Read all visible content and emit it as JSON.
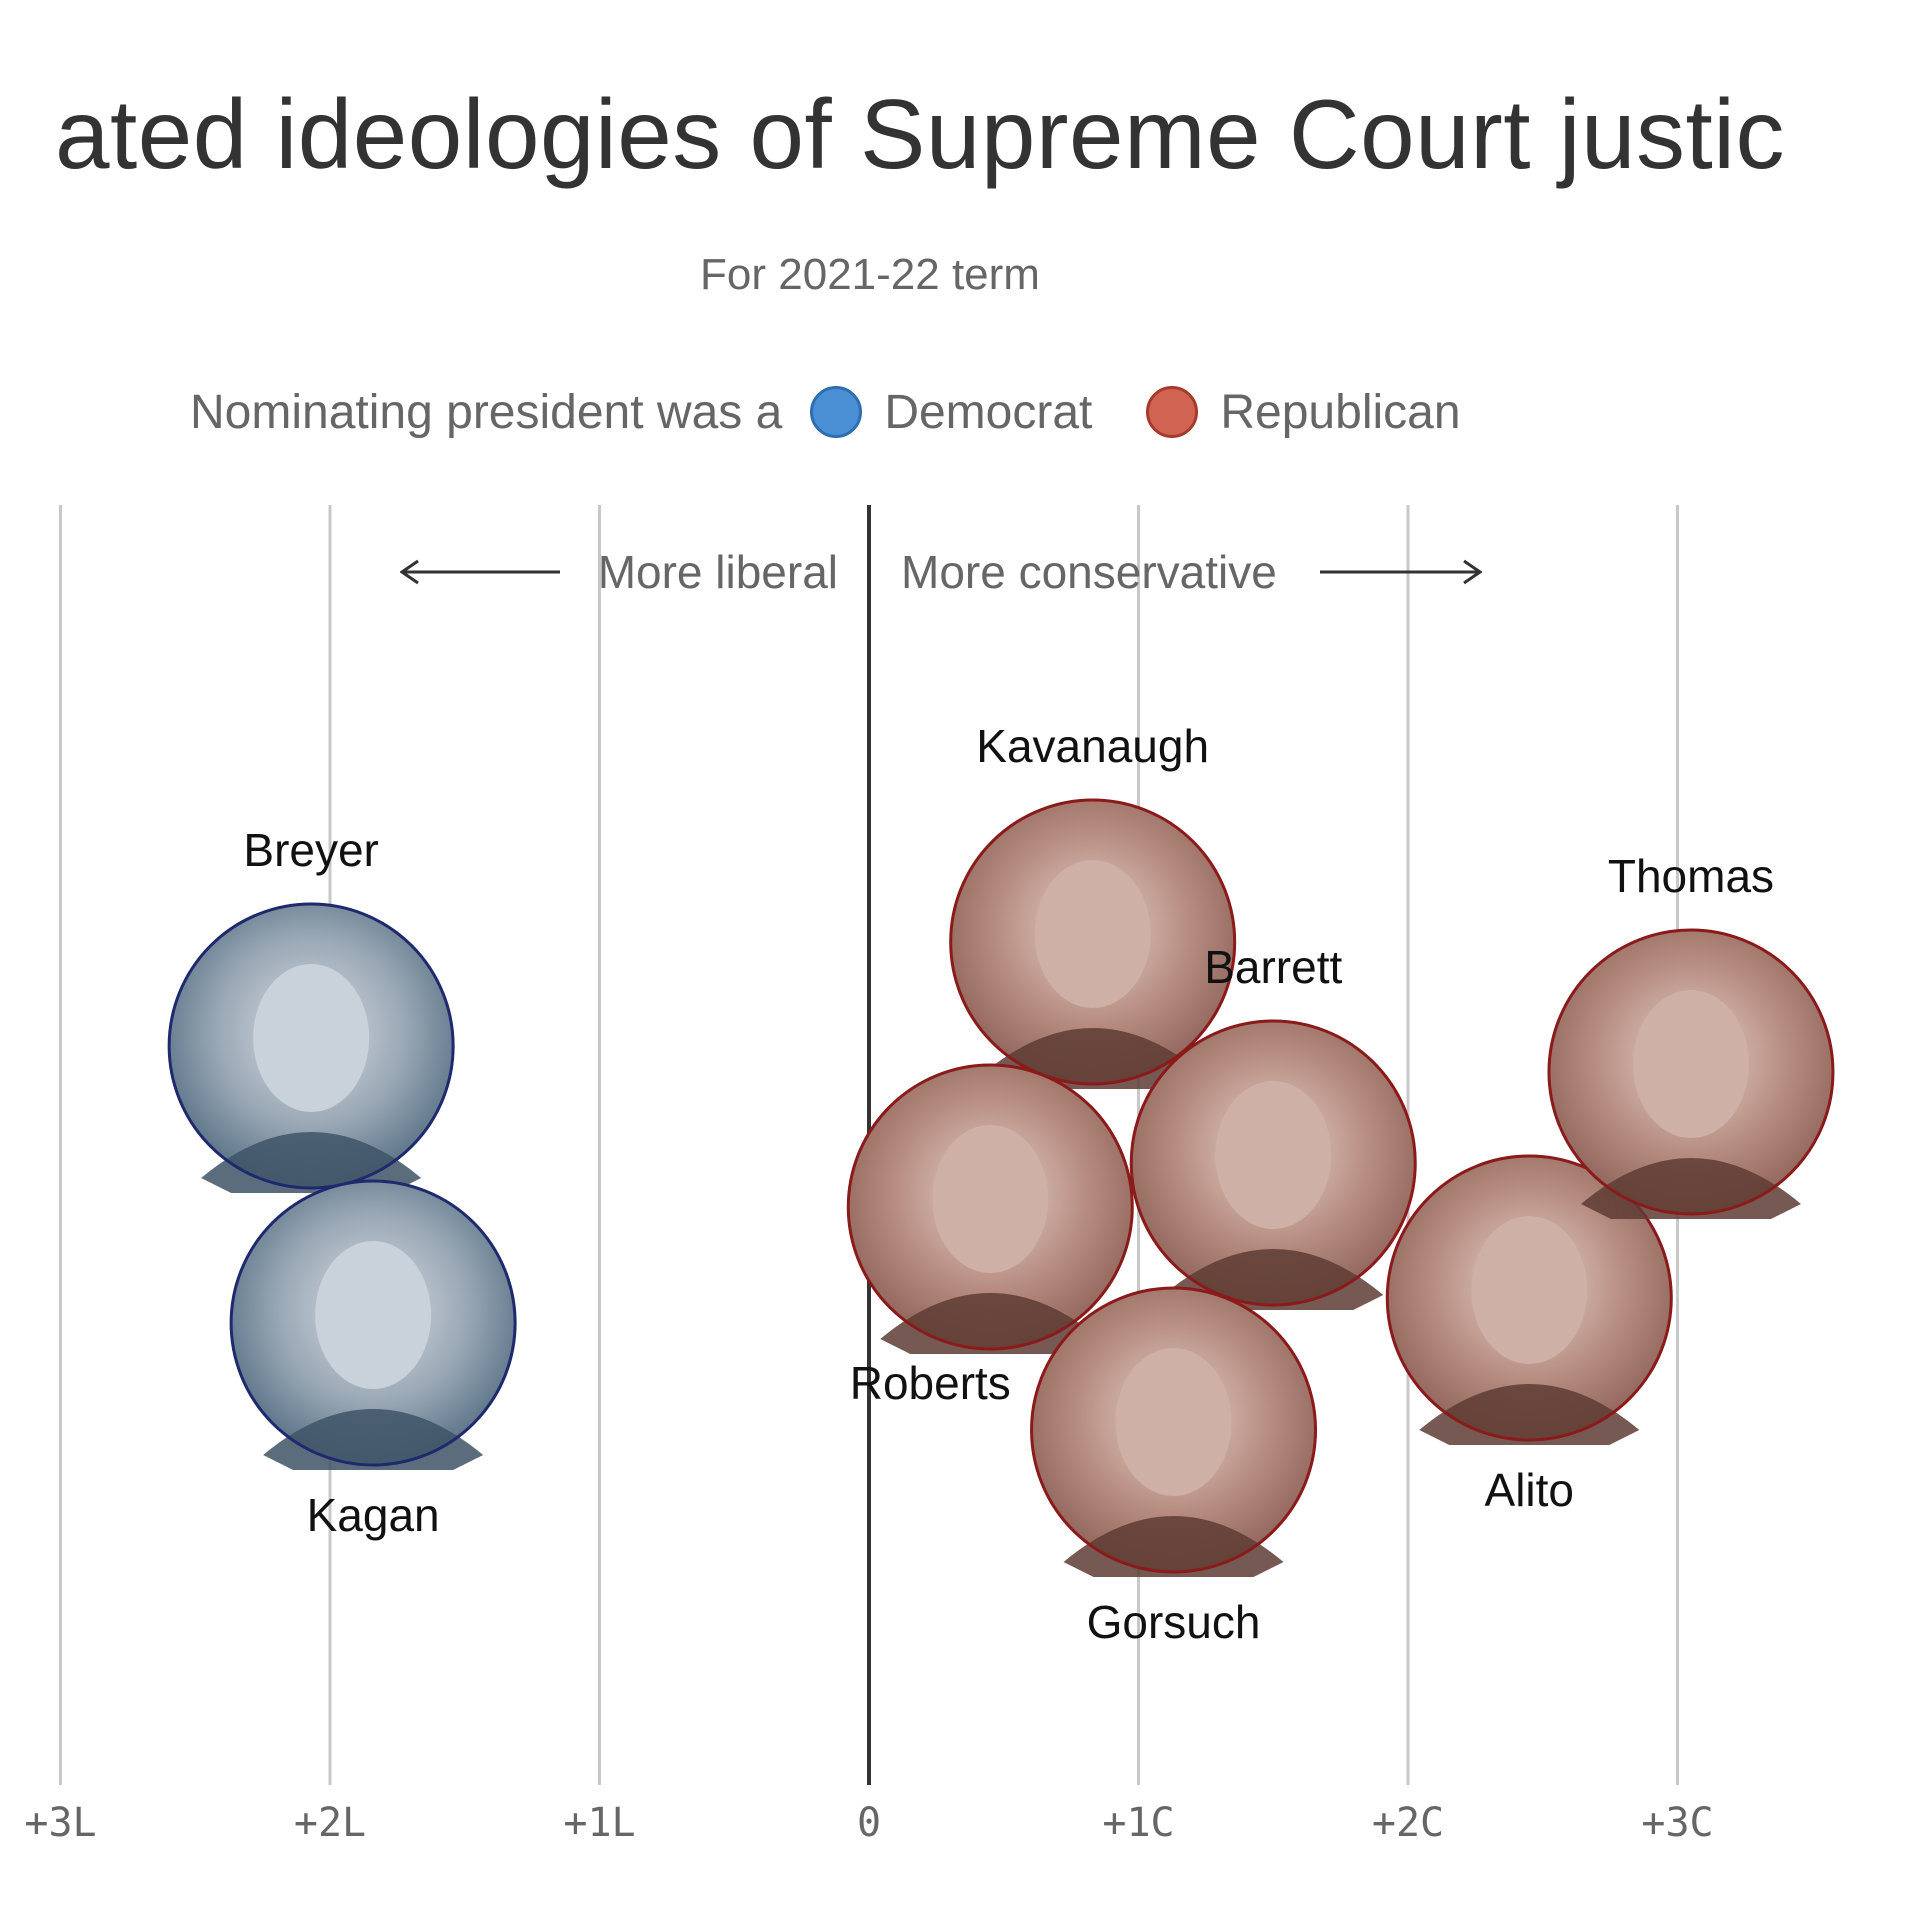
{
  "title": "ated ideologies of Supreme Court justic",
  "subtitle": "For 2021-22 term",
  "legend": {
    "prefix": "Nominating president was a",
    "democrat": "Democrat",
    "republican": "Republican"
  },
  "direction_labels": {
    "left": "More liberal",
    "right": "More conservative"
  },
  "colors": {
    "democrat": "#4a8fd4",
    "democrat_ring": "#1f2a6e",
    "republican": "#d16352",
    "republican_ring": "#8b1a1a",
    "photo_dem_tint": "#4f6a80",
    "photo_rep_tint": "#8a5e54",
    "gridline": "#c8c8c8",
    "zero_line": "#333333"
  },
  "chart_data": {
    "type": "scatter",
    "xlim": [
      -3,
      3.5
    ],
    "ticks": [
      {
        "value": -3,
        "label": "+3L"
      },
      {
        "value": -2,
        "label": "+2L"
      },
      {
        "value": -1,
        "label": "+1L"
      },
      {
        "value": 0,
        "label": "0"
      },
      {
        "value": 1,
        "label": "+1C"
      },
      {
        "value": 2,
        "label": "+2C"
      },
      {
        "value": 3,
        "label": "+3C"
      },
      {
        "value": 4,
        "label": "+"
      }
    ],
    "grid": true,
    "points": [
      {
        "name": "Breyer",
        "x": -2.07,
        "party": "democrat",
        "label_pos": "above"
      },
      {
        "name": "Kagan",
        "x": -1.84,
        "party": "democrat",
        "label_pos": "below"
      },
      {
        "name": "Kavanaugh",
        "x": 0.83,
        "party": "republican",
        "label_pos": "above"
      },
      {
        "name": "Barrett",
        "x": 1.5,
        "party": "republican",
        "label_pos": "above"
      },
      {
        "name": "Roberts",
        "x": 0.45,
        "party": "republican",
        "label_pos": "below-left"
      },
      {
        "name": "Gorsuch",
        "x": 1.13,
        "party": "republican",
        "label_pos": "below"
      },
      {
        "name": "Alito",
        "x": 2.45,
        "party": "republican",
        "label_pos": "below"
      },
      {
        "name": "Thomas",
        "x": 3.05,
        "party": "republican",
        "label_pos": "above"
      }
    ]
  }
}
